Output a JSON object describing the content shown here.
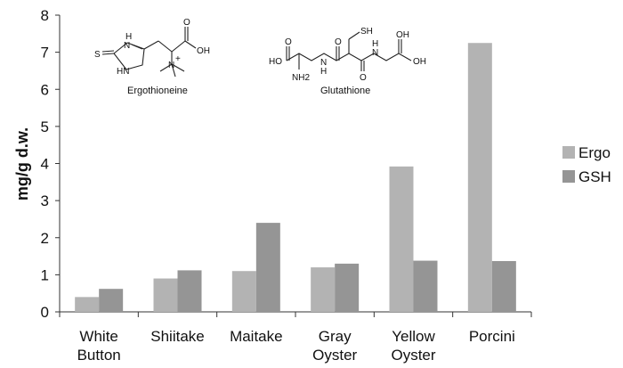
{
  "chart_data": {
    "type": "bar",
    "categories": [
      [
        "White",
        "Button"
      ],
      [
        "Shiitake"
      ],
      [
        "Maitake"
      ],
      [
        "Gray",
        "Oyster"
      ],
      [
        "Yellow",
        "Oyster"
      ],
      [
        "Porcini"
      ]
    ],
    "series": [
      {
        "name": "Ergo",
        "color": "#b3b3b3",
        "values": [
          0.4,
          0.9,
          1.1,
          1.2,
          3.92,
          7.25
        ]
      },
      {
        "name": "GSH",
        "color": "#959595",
        "values": [
          0.62,
          1.12,
          2.4,
          1.3,
          1.38,
          1.37
        ]
      }
    ],
    "ylabel": "mg/g d.w.",
    "ylim": [
      0,
      8
    ],
    "yticks": [
      "0",
      "1",
      "2",
      "3",
      "4",
      "5",
      "6",
      "7",
      "8"
    ],
    "grid": false,
    "legend_position": "right",
    "annotations": {
      "molecule_1": {
        "name": "Ergothioneine",
        "atoms": [
          "S",
          "H",
          "N",
          "HN",
          "OH",
          "O",
          "N",
          "+"
        ]
      },
      "molecule_2": {
        "name": "Glutathione",
        "atoms": [
          "HO",
          "O",
          "NH2",
          "H",
          "N",
          "O",
          "SH",
          "H",
          "N",
          "O",
          "OH"
        ]
      }
    }
  }
}
